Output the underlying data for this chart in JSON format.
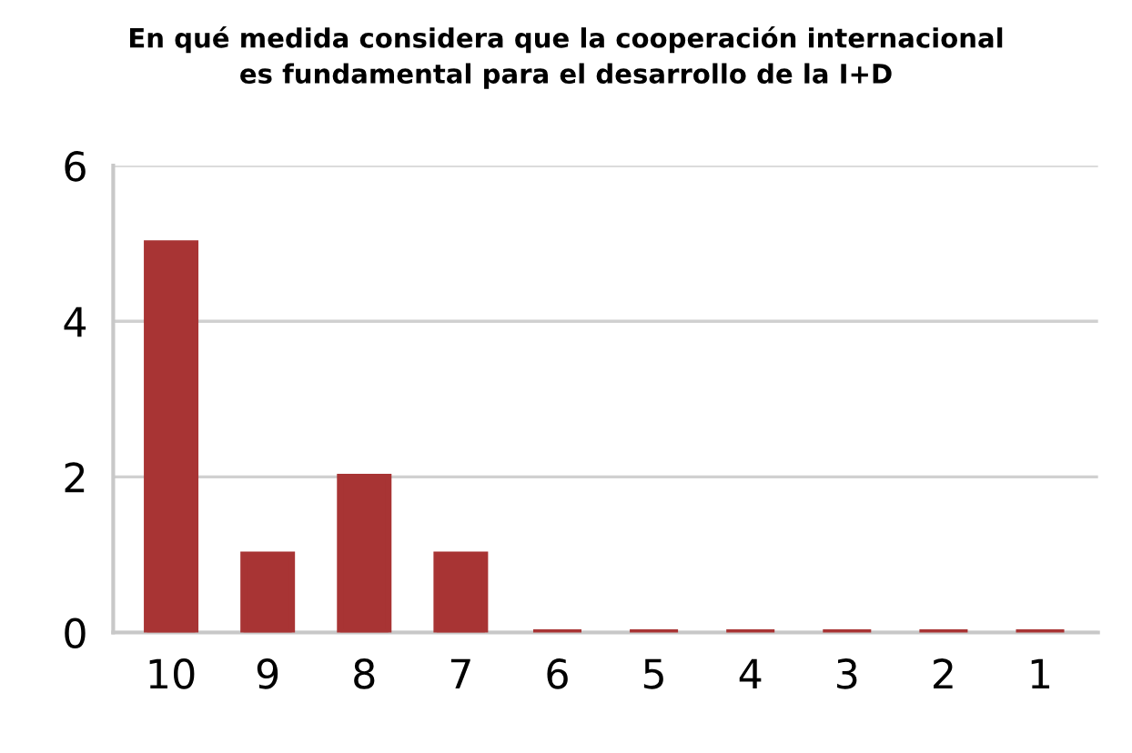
{
  "chart_data": {
    "type": "bar",
    "title": "En qué medida considera que la cooperación internacional\nes fundamental para el desarrollo de la I+D",
    "categories": [
      "10",
      "9",
      "8",
      "7",
      "6",
      "5",
      "4",
      "3",
      "2",
      "1"
    ],
    "values": [
      5,
      1,
      2,
      1,
      0,
      0,
      0,
      0,
      0,
      0
    ],
    "color": "#a83434",
    "ylim": [
      0,
      6
    ],
    "yticks": [
      0,
      2,
      4,
      6
    ],
    "grid": "y"
  }
}
